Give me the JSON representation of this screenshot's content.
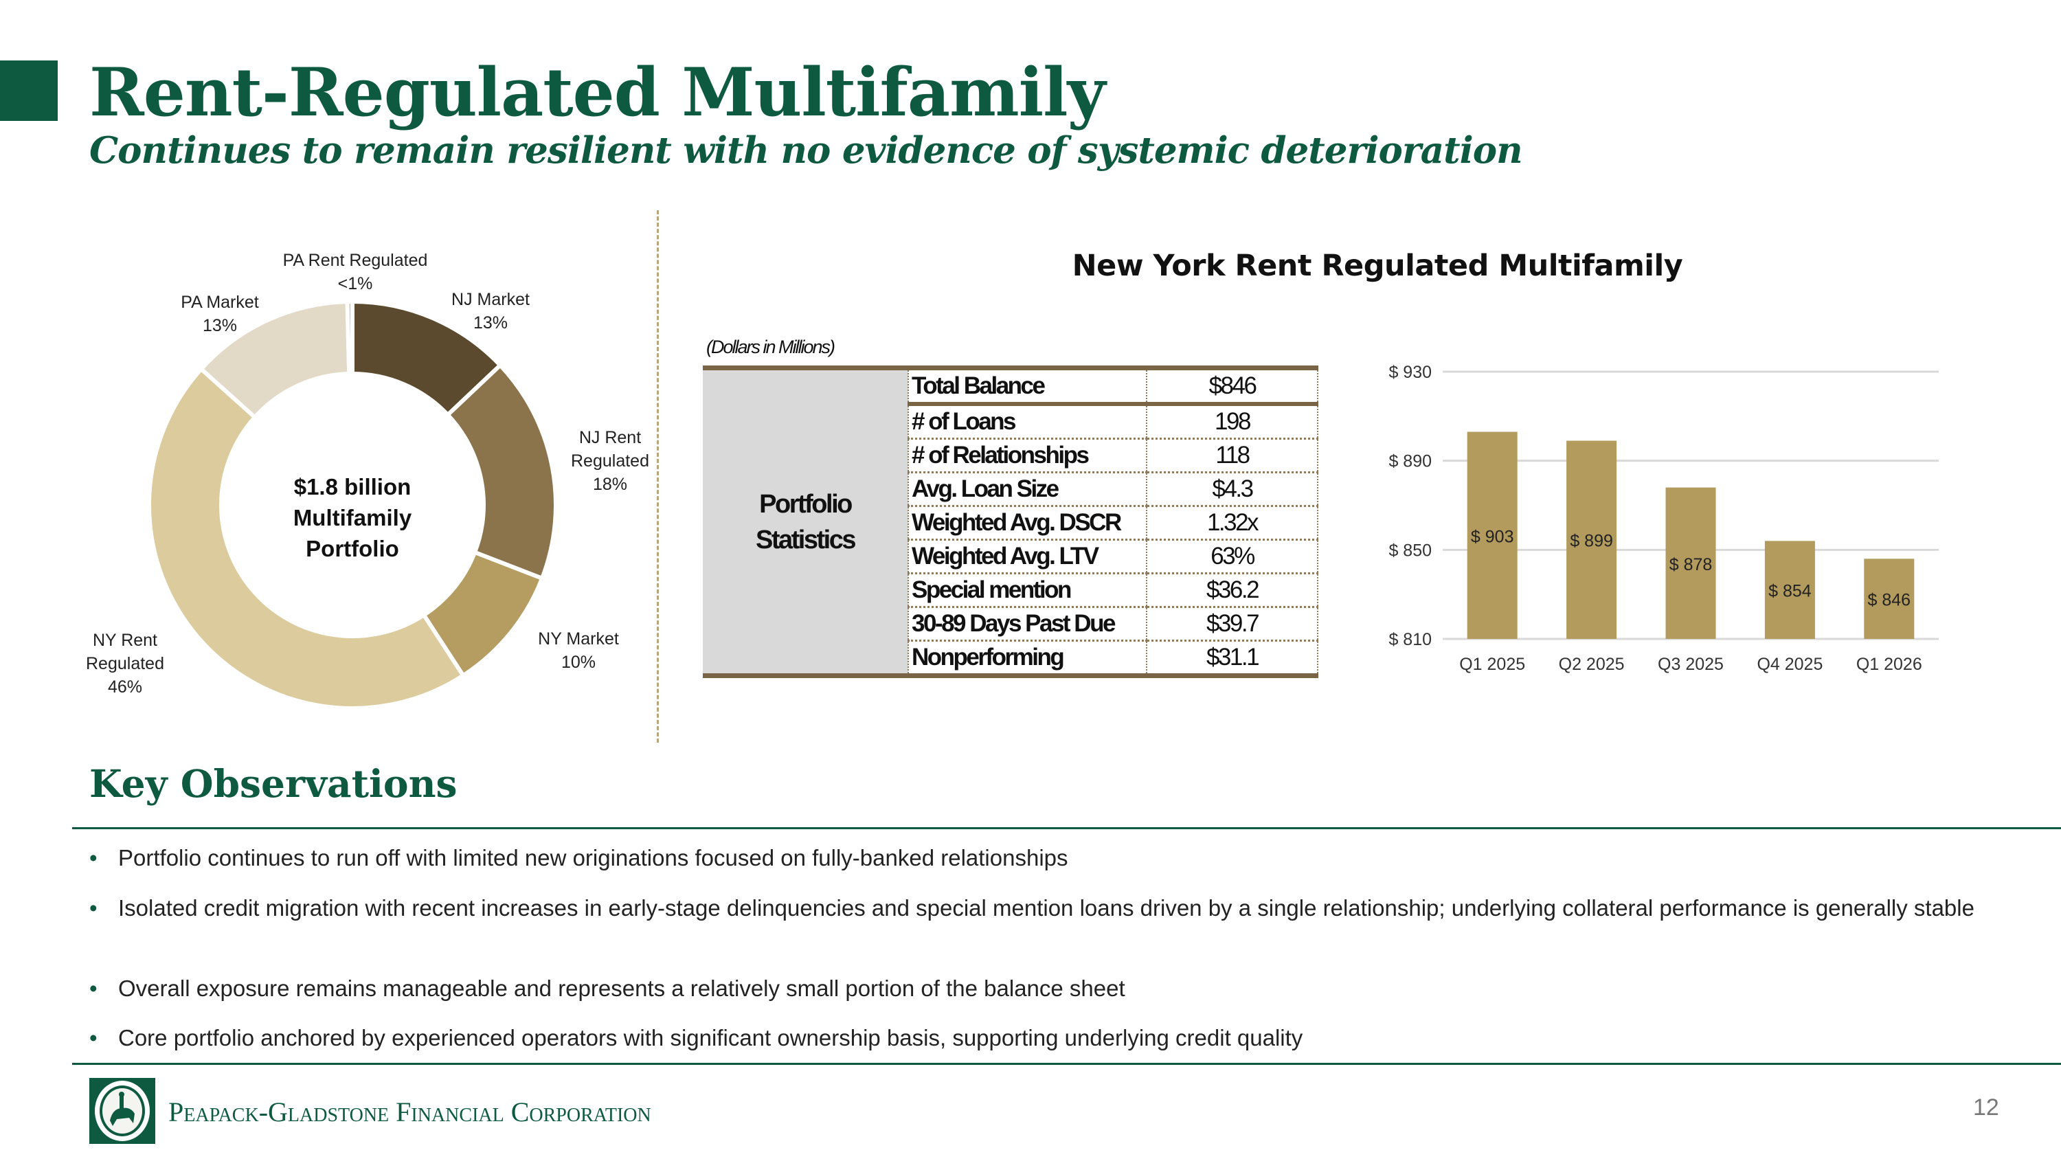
{
  "header": {
    "title": "Rent-Regulated Multifamily",
    "subtitle": "Continues to remain resilient with no evidence of systemic deterioration"
  },
  "donut": {
    "center_lines": [
      "$1.8 billion",
      "Multifamily",
      "Portfolio"
    ],
    "segments": [
      {
        "name": "NJ Market",
        "label_lines": [
          "NJ Market",
          "13%"
        ],
        "value": 13,
        "color": "#5c4a2f"
      },
      {
        "name": "NJ Rent Regulated",
        "label_lines": [
          "NJ Rent",
          "Regulated",
          "18%"
        ],
        "value": 18,
        "color": "#8b734c"
      },
      {
        "name": "NY Market",
        "label_lines": [
          "NY Market",
          "10%"
        ],
        "value": 10,
        "color": "#b59c60"
      },
      {
        "name": "NY Rent Regulated",
        "label_lines": [
          "NY Rent",
          "Regulated",
          "46%"
        ],
        "value": 46,
        "color": "#dccb9d"
      },
      {
        "name": "PA Market",
        "label_lines": [
          "PA Market",
          "13%"
        ],
        "value": 13,
        "color": "#e2d9c7"
      },
      {
        "name": "PA Rent Regulated",
        "label_lines": [
          "PA Rent Regulated",
          "<1%"
        ],
        "value": 0.4,
        "color": "#cdbb8c"
      }
    ]
  },
  "ny_section": {
    "title": "New York Rent Regulated Multifamily",
    "units_note": "(Dollars in Millions)",
    "side_header": [
      "Portfolio",
      "Statistics"
    ],
    "rows": [
      {
        "label": "Total Balance",
        "value": "$846"
      },
      {
        "label": "# of Loans",
        "value": "198"
      },
      {
        "label": "# of Relationships",
        "value": "118"
      },
      {
        "label": "Avg. Loan Size",
        "value": "$4.3"
      },
      {
        "label": "Weighted Avg. DSCR",
        "value": "1.32x"
      },
      {
        "label": "Weighted Avg. LTV",
        "value": "63%"
      },
      {
        "label": "Special mention",
        "value": "$36.2"
      },
      {
        "label": "30-89 Days Past Due",
        "value": "$39.7"
      },
      {
        "label": "Nonperforming",
        "value": "$31.1"
      }
    ]
  },
  "chart_data": {
    "type": "bar",
    "title": "New York Rent Regulated Multifamily",
    "categories": [
      "Q1 2025",
      "Q2 2025",
      "Q3 2025",
      "Q4 2025",
      "Q1 2026"
    ],
    "values": [
      903,
      899,
      878,
      854,
      846
    ],
    "data_labels": [
      "$ 903",
      "$ 899",
      "$ 878",
      "$ 854",
      "$ 846"
    ],
    "ylim": [
      810,
      930
    ],
    "yticks": [
      810,
      850,
      890,
      930
    ],
    "ytick_labels": [
      "$ 810",
      "$ 850",
      "$ 890",
      "$ 930"
    ],
    "grid": true,
    "bar_color": "#b39b5e",
    "xlabel": "",
    "ylabel": ""
  },
  "observations": {
    "heading": "Key Observations",
    "bullet_char": "•",
    "items": [
      "Portfolio continues to run off with limited new originations focused on fully-banked relationships",
      "Isolated credit migration with recent increases in early-stage delinquencies and special mention loans driven by a single relationship; underlying collateral performance is generally stable",
      "Overall exposure remains manageable and represents a relatively small portion of the balance sheet",
      "Core portfolio anchored by experienced operators with significant ownership basis, supporting underlying credit quality"
    ]
  },
  "footer": {
    "company": "Peapack-Gladstone Financial Corporation",
    "page_number": "12"
  }
}
